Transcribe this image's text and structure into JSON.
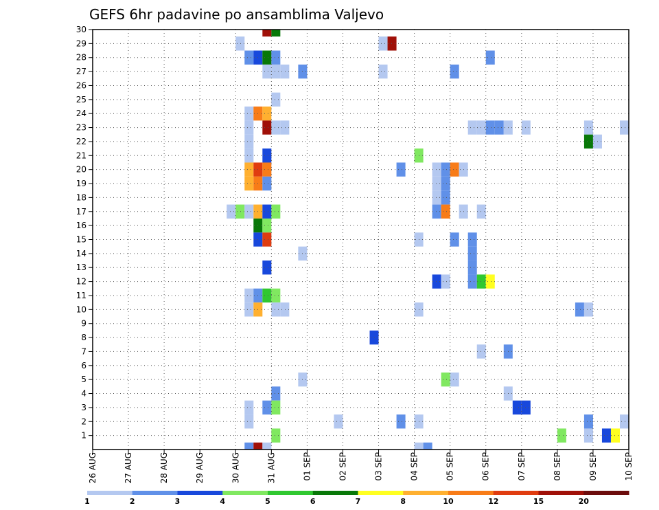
{
  "chart_data": {
    "type": "heatmap",
    "title": "GEFS 6hr padavine po ansamblima Valjevo",
    "xlabel": "",
    "ylabel": "",
    "x_tick_labels": [
      "26 AUG",
      "27 AUG",
      "28 AUG",
      "29 AUG",
      "30 AUG",
      "31 AUG",
      "01 SEP",
      "02 SEP",
      "03 SEP",
      "04 SEP",
      "05 SEP",
      "06 SEP",
      "07 SEP",
      "08 SEP",
      "09 SEP",
      "10 SEP"
    ],
    "x_range_days": [
      0,
      15
    ],
    "y_tick_labels": [
      "1",
      "2",
      "3",
      "4",
      "5",
      "6",
      "7",
      "8",
      "9",
      "10",
      "11",
      "12",
      "13",
      "14",
      "15",
      "16",
      "17",
      "18",
      "19",
      "20",
      "21",
      "22",
      "23",
      "24",
      "25",
      "26",
      "27",
      "28",
      "29",
      "30"
    ],
    "y_range_members": [
      0,
      30
    ],
    "grid": true,
    "colorbar": {
      "labels": [
        "1",
        "2",
        "3",
        "4",
        "5",
        "6",
        "7",
        "8",
        "10",
        "12",
        "15",
        "20"
      ],
      "colors": [
        "#b4c8f0",
        "#6090e8",
        "#1848dc",
        "#80e860",
        "#30c830",
        "#087808",
        "#ffff20",
        "#ffb030",
        "#f87c18",
        "#e03c10",
        "#a01008",
        "#6c0c0c"
      ]
    },
    "cells": [
      {
        "m": 30,
        "d": 4.75,
        "v": 15
      },
      {
        "m": 30,
        "d": 5.0,
        "v": 6
      },
      {
        "m": 29,
        "d": 4.0,
        "v": 1
      },
      {
        "m": 29,
        "d": 8.0,
        "v": 1
      },
      {
        "m": 29,
        "d": 8.25,
        "v": 15
      },
      {
        "m": 28,
        "d": 4.25,
        "v": 2
      },
      {
        "m": 28,
        "d": 4.5,
        "v": 3
      },
      {
        "m": 28,
        "d": 4.75,
        "v": 6
      },
      {
        "m": 28,
        "d": 5.0,
        "v": 2
      },
      {
        "m": 28,
        "d": 11.0,
        "v": 2
      },
      {
        "m": 27,
        "d": 4.75,
        "v": 1
      },
      {
        "m": 27,
        "d": 5.0,
        "v": 1
      },
      {
        "m": 27,
        "d": 5.25,
        "v": 1
      },
      {
        "m": 27,
        "d": 5.75,
        "v": 2
      },
      {
        "m": 27,
        "d": 8.0,
        "v": 1
      },
      {
        "m": 27,
        "d": 10.0,
        "v": 2
      },
      {
        "m": 25,
        "d": 5.0,
        "v": 1
      },
      {
        "m": 24,
        "d": 4.25,
        "v": 1
      },
      {
        "m": 24,
        "d": 4.5,
        "v": 10
      },
      {
        "m": 24,
        "d": 4.75,
        "v": 8
      },
      {
        "m": 23,
        "d": 4.25,
        "v": 1
      },
      {
        "m": 23,
        "d": 4.75,
        "v": 15
      },
      {
        "m": 23,
        "d": 5.0,
        "v": 1
      },
      {
        "m": 23,
        "d": 5.25,
        "v": 1
      },
      {
        "m": 23,
        "d": 10.5,
        "v": 1
      },
      {
        "m": 23,
        "d": 10.75,
        "v": 1
      },
      {
        "m": 23,
        "d": 11.0,
        "v": 2
      },
      {
        "m": 23,
        "d": 11.25,
        "v": 2
      },
      {
        "m": 23,
        "d": 11.5,
        "v": 1
      },
      {
        "m": 23,
        "d": 12.0,
        "v": 1
      },
      {
        "m": 23,
        "d": 13.75,
        "v": 1
      },
      {
        "m": 23,
        "d": 14.75,
        "v": 1
      },
      {
        "m": 22,
        "d": 4.25,
        "v": 1
      },
      {
        "m": 22,
        "d": 13.75,
        "v": 6
      },
      {
        "m": 22,
        "d": 14.0,
        "v": 1
      },
      {
        "m": 21,
        "d": 4.25,
        "v": 1
      },
      {
        "m": 21,
        "d": 4.75,
        "v": 3
      },
      {
        "m": 21,
        "d": 9.0,
        "v": 4
      },
      {
        "m": 20,
        "d": 4.25,
        "v": 8
      },
      {
        "m": 20,
        "d": 4.5,
        "v": 12
      },
      {
        "m": 20,
        "d": 4.75,
        "v": 10
      },
      {
        "m": 20,
        "d": 8.5,
        "v": 2
      },
      {
        "m": 20,
        "d": 9.5,
        "v": 1
      },
      {
        "m": 20,
        "d": 9.75,
        "v": 2
      },
      {
        "m": 20,
        "d": 10.0,
        "v": 10
      },
      {
        "m": 20,
        "d": 10.25,
        "v": 1
      },
      {
        "m": 19,
        "d": 4.25,
        "v": 8
      },
      {
        "m": 19,
        "d": 4.5,
        "v": 10
      },
      {
        "m": 19,
        "d": 4.75,
        "v": 2
      },
      {
        "m": 19,
        "d": 9.5,
        "v": 1
      },
      {
        "m": 19,
        "d": 9.75,
        "v": 2
      },
      {
        "m": 18,
        "d": 9.5,
        "v": 1
      },
      {
        "m": 18,
        "d": 9.75,
        "v": 2
      },
      {
        "m": 17,
        "d": 3.75,
        "v": 1
      },
      {
        "m": 17,
        "d": 4.0,
        "v": 4
      },
      {
        "m": 17,
        "d": 4.25,
        "v": 1
      },
      {
        "m": 17,
        "d": 4.5,
        "v": 8
      },
      {
        "m": 17,
        "d": 4.75,
        "v": 3
      },
      {
        "m": 17,
        "d": 5.0,
        "v": 4
      },
      {
        "m": 17,
        "d": 9.5,
        "v": 2
      },
      {
        "m": 17,
        "d": 9.75,
        "v": 10
      },
      {
        "m": 17,
        "d": 10.25,
        "v": 1
      },
      {
        "m": 17,
        "d": 10.75,
        "v": 1
      },
      {
        "m": 16,
        "d": 4.5,
        "v": 6
      },
      {
        "m": 16,
        "d": 4.75,
        "v": 4
      },
      {
        "m": 15,
        "d": 4.5,
        "v": 3
      },
      {
        "m": 15,
        "d": 4.75,
        "v": 12
      },
      {
        "m": 15,
        "d": 9.0,
        "v": 1
      },
      {
        "m": 15,
        "d": 10.0,
        "v": 2
      },
      {
        "m": 15,
        "d": 10.5,
        "v": 2
      },
      {
        "m": 14,
        "d": 5.75,
        "v": 1
      },
      {
        "m": 14,
        "d": 10.5,
        "v": 2
      },
      {
        "m": 13,
        "d": 4.75,
        "v": 3
      },
      {
        "m": 13,
        "d": 10.5,
        "v": 2
      },
      {
        "m": 12,
        "d": 9.5,
        "v": 3
      },
      {
        "m": 12,
        "d": 9.75,
        "v": 1
      },
      {
        "m": 12,
        "d": 10.5,
        "v": 2
      },
      {
        "m": 12,
        "d": 10.75,
        "v": 5
      },
      {
        "m": 12,
        "d": 11.0,
        "v": 7
      },
      {
        "m": 11,
        "d": 4.25,
        "v": 1
      },
      {
        "m": 11,
        "d": 4.5,
        "v": 2
      },
      {
        "m": 11,
        "d": 4.75,
        "v": 5
      },
      {
        "m": 11,
        "d": 5.0,
        "v": 4
      },
      {
        "m": 10,
        "d": 4.25,
        "v": 1
      },
      {
        "m": 10,
        "d": 4.5,
        "v": 8
      },
      {
        "m": 10,
        "d": 5.0,
        "v": 1
      },
      {
        "m": 10,
        "d": 5.25,
        "v": 1
      },
      {
        "m": 10,
        "d": 9.0,
        "v": 1
      },
      {
        "m": 10,
        "d": 13.5,
        "v": 2
      },
      {
        "m": 10,
        "d": 13.75,
        "v": 1
      },
      {
        "m": 8,
        "d": 7.75,
        "v": 3
      },
      {
        "m": 7,
        "d": 10.75,
        "v": 1
      },
      {
        "m": 7,
        "d": 11.5,
        "v": 2
      },
      {
        "m": 5,
        "d": 5.75,
        "v": 1
      },
      {
        "m": 5,
        "d": 9.75,
        "v": 4
      },
      {
        "m": 5,
        "d": 10.0,
        "v": 1
      },
      {
        "m": 4,
        "d": 5.0,
        "v": 2
      },
      {
        "m": 4,
        "d": 11.5,
        "v": 1
      },
      {
        "m": 3,
        "d": 4.25,
        "v": 1
      },
      {
        "m": 3,
        "d": 4.75,
        "v": 2
      },
      {
        "m": 3,
        "d": 5.0,
        "v": 4
      },
      {
        "m": 3,
        "d": 11.75,
        "v": 3
      },
      {
        "m": 3,
        "d": 12.0,
        "v": 3
      },
      {
        "m": 2,
        "d": 4.25,
        "v": 1
      },
      {
        "m": 2,
        "d": 6.75,
        "v": 1
      },
      {
        "m": 2,
        "d": 8.5,
        "v": 2
      },
      {
        "m": 2,
        "d": 9.0,
        "v": 1
      },
      {
        "m": 2,
        "d": 13.75,
        "v": 2
      },
      {
        "m": 2,
        "d": 14.75,
        "v": 1
      },
      {
        "m": 1,
        "d": 5.0,
        "v": 4
      },
      {
        "m": 1,
        "d": 13.0,
        "v": 4
      },
      {
        "m": 1,
        "d": 13.75,
        "v": 1
      },
      {
        "m": 1,
        "d": 14.25,
        "v": 3
      },
      {
        "m": 1,
        "d": 14.5,
        "v": 7
      },
      {
        "m": 0,
        "d": 4.25,
        "v": 2
      },
      {
        "m": 0,
        "d": 4.5,
        "v": 15
      },
      {
        "m": 0,
        "d": 4.75,
        "v": 1
      },
      {
        "m": 0,
        "d": 9.0,
        "v": 1
      },
      {
        "m": 0,
        "d": 9.25,
        "v": 2
      }
    ]
  }
}
